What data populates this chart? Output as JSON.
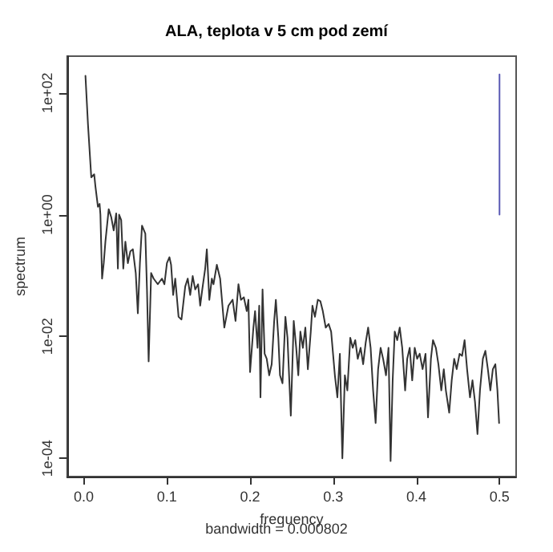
{
  "chart_data": {
    "type": "line",
    "title": "ALA, teplota v 5 cm pod zemí",
    "subtitle": "bandwidth = 0.000802",
    "xlabel": "frequency",
    "ylabel": "spectrum",
    "log": "y",
    "grid": false,
    "marker": "none",
    "xlim": [
      -0.02,
      0.52
    ],
    "xticks": [
      {
        "value": 0,
        "label": "0.0"
      },
      0.1,
      0.2,
      0.3,
      0.4,
      0.5
    ],
    "ylim": [
      5e-05,
      400
    ],
    "yticks": [
      {
        "value": 0.0001,
        "label": "1e-04"
      },
      {
        "value": 0.01,
        "label": "1e-02"
      },
      {
        "value": 1,
        "label": "1e+00"
      },
      {
        "value": 100,
        "label": "1e+02"
      }
    ],
    "series": [
      {
        "color": "#333333",
        "x": [
          0.002,
          0.005,
          0.009,
          0.0125,
          0.014,
          0.017,
          0.019,
          0.02,
          0.022,
          0.024,
          0.026,
          0.03,
          0.033,
          0.036,
          0.039,
          0.041,
          0.0425,
          0.045,
          0.0475,
          0.05,
          0.053,
          0.056,
          0.059,
          0.0625,
          0.065,
          0.0675,
          0.07,
          0.074,
          0.076,
          0.078,
          0.081,
          0.084,
          0.089,
          0.094,
          0.097,
          0.1,
          0.103,
          0.105,
          0.1075,
          0.11,
          0.114,
          0.1175,
          0.122,
          0.125,
          0.128,
          0.131,
          0.134,
          0.1375,
          0.14,
          0.1425,
          0.146,
          0.148,
          0.151,
          0.154,
          0.156,
          0.16,
          0.164,
          0.169,
          0.174,
          0.179,
          0.1825,
          0.186,
          0.189,
          0.1925,
          0.196,
          0.198,
          0.2,
          0.204,
          0.206,
          0.209,
          0.211,
          0.2125,
          0.215,
          0.2175,
          0.22,
          0.223,
          0.226,
          0.229,
          0.231,
          0.234,
          0.236,
          0.239,
          0.2425,
          0.245,
          0.249,
          0.2525,
          0.2555,
          0.258,
          0.2605,
          0.2635,
          0.2665,
          0.2695,
          0.273,
          0.275,
          0.278,
          0.2815,
          0.2845,
          0.2875,
          0.291,
          0.2945,
          0.2975,
          0.302,
          0.305,
          0.308,
          0.311,
          0.314,
          0.317,
          0.3205,
          0.3235,
          0.3265,
          0.3295,
          0.333,
          0.336,
          0.339,
          0.342,
          0.345,
          0.348,
          0.351,
          0.354,
          0.357,
          0.36,
          0.3635,
          0.3665,
          0.369,
          0.3715,
          0.374,
          0.377,
          0.38,
          0.383,
          0.3865,
          0.389,
          0.392,
          0.395,
          0.398,
          0.401,
          0.404,
          0.4075,
          0.411,
          0.414,
          0.4175,
          0.42,
          0.4235,
          0.4265,
          0.43,
          0.433,
          0.4355,
          0.4395,
          0.4425,
          0.4455,
          0.4485,
          0.452,
          0.455,
          0.458,
          0.461,
          0.4645,
          0.4675,
          0.4705,
          0.4735,
          0.4765,
          0.48,
          0.483,
          0.486,
          0.489,
          0.492,
          0.495,
          0.4975,
          0.4995
        ],
        "values": [
          190,
          31,
          4.1,
          4.6,
          2.9,
          1.35,
          1.5,
          1.0,
          0.089,
          0.16,
          0.36,
          1.23,
          0.91,
          0.55,
          1.05,
          0.13,
          1.0,
          0.81,
          0.13,
          0.36,
          0.16,
          0.25,
          0.27,
          0.11,
          0.024,
          0.16,
          0.66,
          0.49,
          0.059,
          0.0039,
          0.11,
          0.089,
          0.072,
          0.089,
          0.072,
          0.16,
          0.2,
          0.15,
          0.048,
          0.089,
          0.021,
          0.019,
          0.066,
          0.089,
          0.048,
          0.098,
          0.059,
          0.072,
          0.032,
          0.059,
          0.13,
          0.27,
          0.04,
          0.089,
          0.072,
          0.15,
          0.089,
          0.014,
          0.032,
          0.04,
          0.018,
          0.072,
          0.04,
          0.044,
          0.026,
          0.04,
          0.0026,
          0.014,
          0.026,
          0.0065,
          0.032,
          0.001,
          0.059,
          0.0052,
          0.0043,
          0.0023,
          0.0035,
          0.018,
          0.04,
          0.0095,
          0.0023,
          0.0017,
          0.021,
          0.0095,
          0.0005,
          0.018,
          0.0065,
          0.0023,
          0.012,
          0.0065,
          0.014,
          0.0029,
          0.012,
          0.032,
          0.021,
          0.04,
          0.038,
          0.026,
          0.014,
          0.016,
          0.012,
          0.0023,
          0.001,
          0.0052,
          0.0001,
          0.0023,
          0.0013,
          0.0095,
          0.0065,
          0.0087,
          0.0043,
          0.0065,
          0.0035,
          0.0078,
          0.014,
          0.0065,
          0.0013,
          0.00038,
          0.0029,
          0.0065,
          0.0043,
          0.0023,
          0.0065,
          9e-05,
          0.0019,
          0.012,
          0.0087,
          0.014,
          0.0065,
          0.0013,
          0.0043,
          0.0065,
          0.0019,
          0.0065,
          0.0043,
          0.0052,
          0.0029,
          0.0052,
          0.00047,
          0.0043,
          0.0087,
          0.0065,
          0.0035,
          0.0013,
          0.0029,
          0.0013,
          0.00056,
          0.0019,
          0.0043,
          0.0029,
          0.0052,
          0.0048,
          0.0087,
          0.0029,
          0.001,
          0.0019,
          0.00085,
          0.00025,
          0.0013,
          0.0043,
          0.0058,
          0.0029,
          0.0013,
          0.0029,
          0.0035,
          0.0013,
          0.00038
        ]
      },
      {
        "color": "#5a5ab4",
        "x": [
          0.5,
          0.5
        ],
        "values": [
          1,
          200
        ]
      }
    ]
  }
}
